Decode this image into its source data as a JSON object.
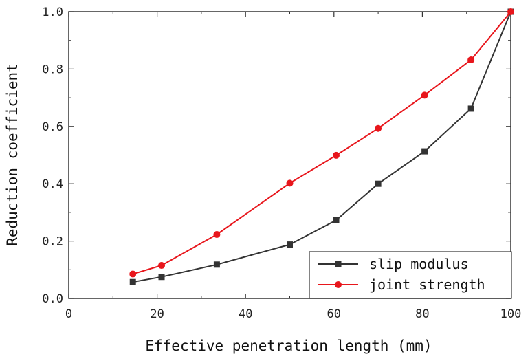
{
  "chart_data": {
    "type": "line",
    "title": "",
    "xlabel": "Effective penetration length (mm)",
    "ylabel": "Reduction coefficient",
    "xlim": [
      0,
      100
    ],
    "ylim": [
      0.0,
      1.0
    ],
    "xticks": [
      0,
      20,
      40,
      60,
      80,
      100
    ],
    "xtick_labels": [
      "0",
      "20",
      "40",
      "60",
      "80",
      "100"
    ],
    "yticks": [
      0.0,
      0.2,
      0.4,
      0.6,
      0.8,
      1.0
    ],
    "ytick_labels": [
      "0.0",
      "0.2",
      "0.4",
      "0.6",
      "0.8",
      "1.0"
    ],
    "grid": false,
    "legend_position": "bottom-right",
    "series": [
      {
        "name": "slip modulus",
        "color": "#333333",
        "marker": "square",
        "x": [
          14.5,
          21,
          33.5,
          50,
          60.5,
          70,
          80.5,
          91,
          100
        ],
        "y": [
          0.057,
          0.075,
          0.118,
          0.188,
          0.273,
          0.4,
          0.513,
          0.662,
          1.0
        ]
      },
      {
        "name": "joint strength",
        "color": "#e8161c",
        "marker": "circle",
        "x": [
          14.5,
          21,
          33.5,
          50,
          60.5,
          70,
          80.5,
          91,
          100
        ],
        "y": [
          0.085,
          0.115,
          0.223,
          0.402,
          0.499,
          0.593,
          0.709,
          0.832,
          1.0
        ]
      }
    ]
  }
}
